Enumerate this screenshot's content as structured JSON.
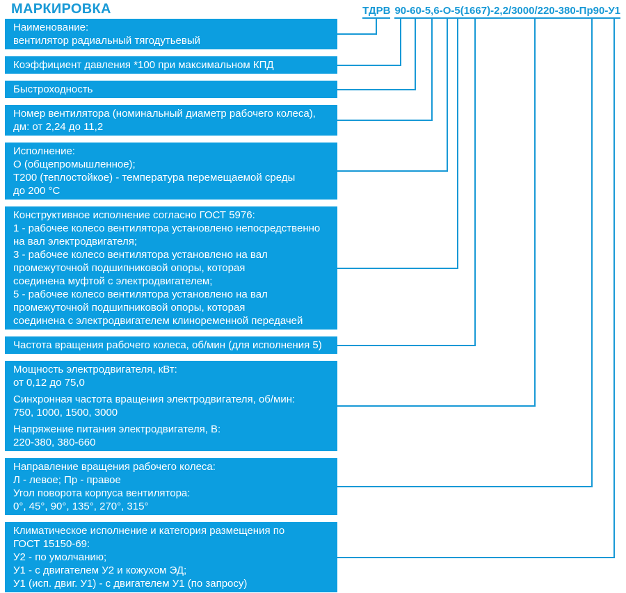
{
  "page": {
    "title": "МАРКИРОВКА"
  },
  "colors": {
    "accent": "#1899d6",
    "box_fill": "#0c9ee0",
    "box_text": "#ffffff"
  },
  "marking": {
    "code": "ТДРВ 90-60-5,6-О-5(1667)-2,2/3000/220-380-Пр90-У1",
    "segments": [
      {
        "text": "ТДРВ",
        "sep": " "
      },
      {
        "text": "90",
        "sep": "-"
      },
      {
        "text": "60",
        "sep": "-"
      },
      {
        "text": "5,6",
        "sep": "-"
      },
      {
        "text": "О",
        "sep": "-"
      },
      {
        "text": "5",
        "sep": ""
      },
      {
        "text": "(1667)",
        "sep": "-"
      },
      {
        "text": "2,2/3000/220-380",
        "sep": "-"
      },
      {
        "text": "Пр90",
        "sep": "-"
      },
      {
        "text": "У1",
        "sep": ""
      }
    ]
  },
  "rows": [
    {
      "code_segment": "ТДРВ",
      "paragraphs": [
        "Наименование:\nвентилятор радиальный тягодутьевый"
      ]
    },
    {
      "code_segment": "90",
      "paragraphs": [
        "Коэффициент давления *100 при максимальном КПД"
      ]
    },
    {
      "code_segment": "60",
      "paragraphs": [
        "Быстроходность"
      ]
    },
    {
      "code_segment": "5,6",
      "paragraphs": [
        "Номер вентилятора (номинальный диаметр рабочего колеса),\nдм: от 2,24 до 11,2"
      ]
    },
    {
      "code_segment": "О",
      "paragraphs": [
        "Исполнение:\nО (общепромышленное);\nТ200 (теплостойкое) - температура перемещаемой среды\nдо 200 °С"
      ]
    },
    {
      "code_segment": "5",
      "paragraphs": [
        "Конструктивное исполнение согласно ГОСТ 5976:\n1 - рабочее колесо вентилятора установлено непосредственно\nна вал электродвигателя;\n3 - рабочее колесо вентилятора установлено на вал\nпромежуточной подшипниковой опоры, которая\nсоединена муфтой с электродвигателем;\n5 - рабочее колесо вентилятора установлено на вал\nпромежуточной подшипниковой опоры, которая\nсоединена с электродвигателем клиноременной передачей"
      ]
    },
    {
      "code_segment": "(1667)",
      "paragraphs": [
        "Частота вращения рабочего колеса, об/мин (для исполнения 5)"
      ]
    },
    {
      "code_segment": "2,2/3000/220-380",
      "paragraphs": [
        "Мощность электродвигателя, кВт:\nот 0,12 до 75,0",
        "Синхронная частота вращения электродвигателя, об/мин:\n750, 1000, 1500, 3000",
        "Напряжение питания электродвигателя, В:\n220-380, 380-660"
      ]
    },
    {
      "code_segment": "Пр90",
      "paragraphs": [
        "Направление вращения рабочего колеса:\nЛ - левое; Пр - правое\nУгол поворота корпуса вентилятора:\n0°, 45°, 90°, 135°, 270°, 315°"
      ]
    },
    {
      "code_segment": "У1",
      "paragraphs": [
        "Климатическое исполнение и категория размещения по\nГОСТ 15150-69:\nУ2 - по умолчанию;\nУ1 - с двигателем У2 и кожухом ЭД;\nУ1 (исп. двиг. У1) - с двигателем У1 (по запросу)"
      ]
    }
  ]
}
